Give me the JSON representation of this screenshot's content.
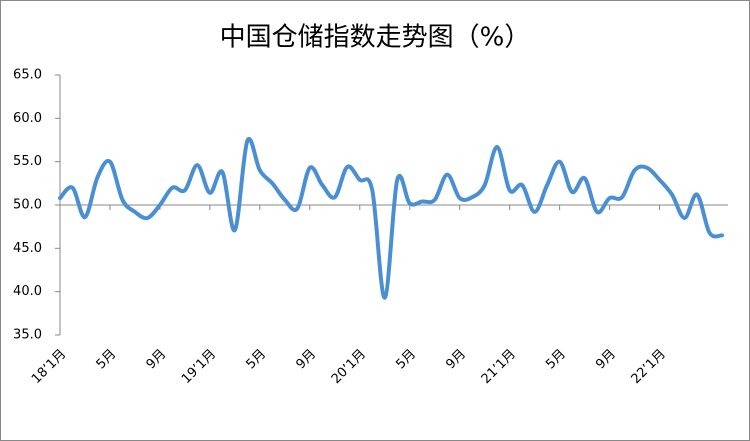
{
  "chart_data": {
    "type": "line",
    "title": "中国仓储指数走势图（%）",
    "categories": [
      "18’1月",
      null,
      null,
      null,
      "5月",
      null,
      null,
      null,
      "9月",
      null,
      null,
      null,
      "19’1月",
      null,
      null,
      null,
      "5月",
      null,
      null,
      null,
      "9月",
      null,
      null,
      null,
      "20’1月",
      null,
      null,
      null,
      "5月",
      null,
      null,
      null,
      "9月",
      null,
      null,
      null,
      "21’1月",
      null,
      null,
      null,
      "5月",
      null,
      null,
      null,
      "9月",
      null,
      null,
      null,
      "22’1月",
      null,
      null,
      null,
      null,
      null
    ],
    "series": [
      {
        "name": "中国仓储指数",
        "color": "#4a8fd4",
        "values": [
          50.8,
          52.0,
          48.6,
          53.2,
          55.0,
          50.6,
          49.2,
          48.5,
          50.0,
          52.0,
          51.7,
          54.6,
          51.4,
          53.8,
          47.1,
          57.4,
          54.0,
          52.5,
          50.6,
          49.6,
          54.3,
          52.3,
          50.9,
          54.4,
          52.9,
          51.7,
          39.3,
          52.9,
          50.2,
          50.4,
          50.6,
          53.5,
          50.8,
          50.9,
          52.3,
          56.7,
          51.7,
          52.3,
          49.2,
          52.3,
          55.0,
          51.5,
          53.1,
          49.2,
          50.8,
          50.9,
          54.0,
          54.3,
          52.9,
          51.2,
          48.5,
          51.2,
          46.8,
          46.5
        ]
      }
    ],
    "ylim": [
      35,
      65
    ],
    "yticks": [
      {
        "value": 35,
        "label": "35.0"
      },
      {
        "value": 40,
        "label": "40.0"
      },
      {
        "value": 45,
        "label": "45.0"
      },
      {
        "value": 50,
        "label": "50.0"
      },
      {
        "value": 55,
        "label": "55.0"
      },
      {
        "value": 60,
        "label": "60.0"
      },
      {
        "value": 65,
        "label": "65.0"
      }
    ],
    "x_axis_crosses": 50
  }
}
